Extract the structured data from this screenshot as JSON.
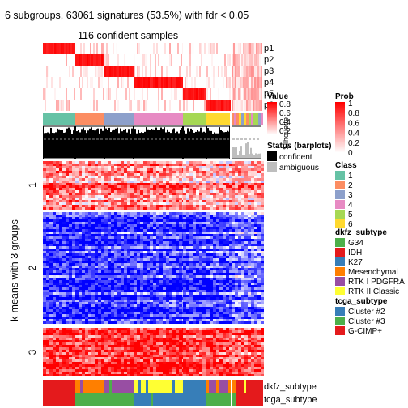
{
  "chart_data": {
    "type": "heatmap",
    "title": "6 subgroups, 63061 signatures (53.5%) with fdr < 0.05",
    "subtitle": "116 confident samples",
    "ylabel": "k-means with 3 groups",
    "row_groups": [
      "1",
      "2",
      "3"
    ],
    "column_groups": [
      {
        "class": "1",
        "n": 20
      },
      {
        "class": "2",
        "n": 19
      },
      {
        "class": "3",
        "n": 18
      },
      {
        "class": "4",
        "n": 33
      },
      {
        "class": "5",
        "n": 15
      },
      {
        "class": "6",
        "n": 11
      }
    ],
    "ambiguous_n": 21,
    "prob_rows": [
      "p1",
      "p2",
      "p3",
      "p4",
      "p5",
      "p6"
    ],
    "annotation_rows": [
      "dkfz_subtype",
      "tcga_subtype"
    ],
    "value_legend": {
      "title": "Value",
      "ticks": [
        "0.8",
        "0.6",
        "0.4",
        "0.2"
      ]
    },
    "silhouette_label": "Silhouette",
    "legends": [
      {
        "title": "Prob",
        "ticks": [
          "1",
          "0.8",
          "0.6",
          "0.4",
          "0.2",
          "0"
        ]
      },
      {
        "title": "Class",
        "items": [
          {
            "label": "1",
            "color": "#66C2A5"
          },
          {
            "label": "2",
            "color": "#FC8D62"
          },
          {
            "label": "3",
            "color": "#8DA0CB"
          },
          {
            "label": "4",
            "color": "#E78AC3"
          },
          {
            "label": "5",
            "color": "#A6D854"
          },
          {
            "label": "6",
            "color": "#FFD92F"
          }
        ]
      },
      {
        "title": "Status (barplots)",
        "items": [
          {
            "label": "confident",
            "color": "#000000"
          },
          {
            "label": "ambiguous",
            "color": "#BEBEBE"
          }
        ]
      },
      {
        "title": "dkfz_subtype",
        "items": [
          {
            "label": "G34",
            "color": "#4DAF4A"
          },
          {
            "label": "IDH",
            "color": "#E41A1C"
          },
          {
            "label": "K27",
            "color": "#377EB8"
          },
          {
            "label": "Mesenchymal",
            "color": "#FF7F00"
          },
          {
            "label": "RTK I PDGFRA",
            "color": "#984EA3"
          },
          {
            "label": "RTK II Classic",
            "color": "#FFFF33"
          }
        ]
      },
      {
        "title": "tcga_subtype",
        "items": [
          {
            "label": "Cluster #2",
            "color": "#377EB8"
          },
          {
            "label": "Cluster #3",
            "color": "#4DAF4A"
          },
          {
            "label": "G-CIMP+",
            "color": "#E41A1C"
          }
        ]
      }
    ],
    "colors": {
      "high": "#FF0000",
      "mid": "#FFFFFF",
      "low": "#0000FF"
    }
  }
}
